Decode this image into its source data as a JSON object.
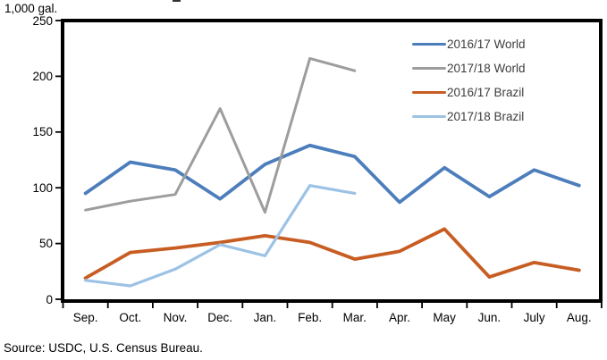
{
  "figure": {
    "y_axis_unit": "1,000 gal.",
    "source_note": "Source: USDC, U.S. Census Bureau."
  },
  "chart_data": {
    "type": "line",
    "title": "",
    "xlabel": "",
    "ylabel": "1,000 gal.",
    "ylim": [
      0,
      250
    ],
    "y_ticks": [
      0,
      50,
      100,
      150,
      200,
      250
    ],
    "grid": false,
    "legend_position": "inside-top-right",
    "categories": [
      "Sep.",
      "Oct.",
      "Nov.",
      "Dec.",
      "Jan.",
      "Feb.",
      "Mar.",
      "Apr.",
      "May",
      "Jun.",
      "July",
      "Aug."
    ],
    "series": [
      {
        "name": "2016/17 World",
        "color": "#4d7ebc",
        "stroke_width": 3.8,
        "values": [
          95,
          123,
          116,
          90,
          121,
          138,
          128,
          87,
          118,
          92,
          116,
          102
        ]
      },
      {
        "name": "2017/18 World",
        "color": "#9d9d9d",
        "stroke_width": 3.0,
        "values": [
          80,
          88,
          94,
          171,
          78,
          216,
          205
        ]
      },
      {
        "name": "2016/17 Brazil",
        "color": "#c75d22",
        "stroke_width": 3.8,
        "values": [
          19,
          42,
          46,
          51,
          57,
          51,
          36,
          43,
          63,
          20,
          33,
          26
        ]
      },
      {
        "name": "2017/18 Brazil",
        "color": "#9cc2e5",
        "stroke_width": 3.2,
        "values": [
          17,
          12,
          27,
          49,
          39,
          102,
          95
        ]
      }
    ]
  }
}
